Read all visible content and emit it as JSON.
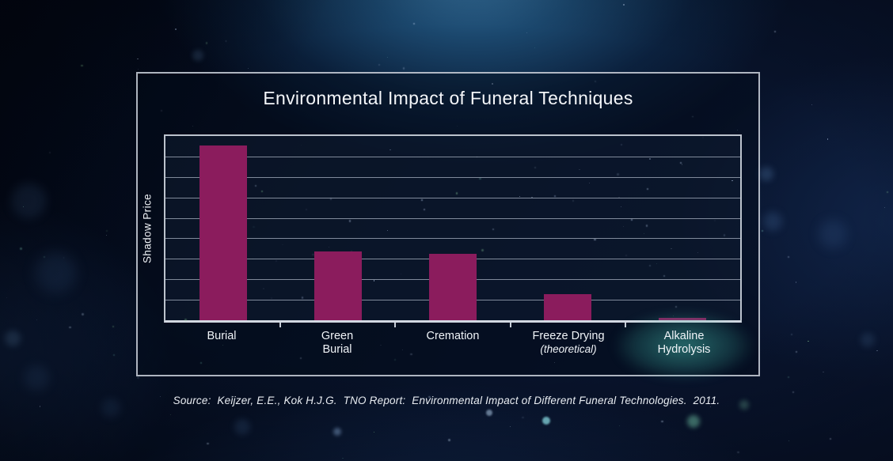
{
  "frame": {
    "title": "Environmental Impact of Funeral Techniques"
  },
  "axis": {
    "y_label": "Shadow Price"
  },
  "x_labels": [
    {
      "lines": [
        "Burial"
      ],
      "italic_second_line": false,
      "highlight": false
    },
    {
      "lines": [
        "Green",
        "Burial"
      ],
      "italic_second_line": false,
      "highlight": false
    },
    {
      "lines": [
        "Cremation"
      ],
      "italic_second_line": false,
      "highlight": false
    },
    {
      "lines": [
        "Freeze Drying",
        "(theoretical)"
      ],
      "italic_second_line": true,
      "highlight": false
    },
    {
      "lines": [
        "Alkaline",
        "Hydrolysis"
      ],
      "italic_second_line": false,
      "highlight": true
    }
  ],
  "caption": {
    "source": "Source:  Keijzer, E.E., Kok H.J.G.  TNO Report:  Environmental Impact of Different Funeral Technologies.  2011."
  },
  "colors": {
    "bar_fill": "#8b1c5d",
    "title_text": "#f4f6f9",
    "label_text": "#f0f4f8",
    "frame_border": "#c6ccd6",
    "grid_line": "#aab4c2",
    "highlight_glow": "#40b2a4",
    "background_top_glow": "#2a6590",
    "background_base": "#071229"
  },
  "chart_data": {
    "type": "bar",
    "title": "Environmental Impact of Funeral Techniques",
    "xlabel": "",
    "ylabel": "Shadow Price",
    "categories": [
      "Burial",
      "Green Burial",
      "Cremation",
      "Freeze Drying (theoretical)",
      "Alkaline Hydrolysis"
    ],
    "values": [
      95,
      37.5,
      36,
      14,
      1.3
    ],
    "ylim": [
      0,
      100
    ],
    "y_tick_labels": "none (unlabeled relative scale)",
    "gridline_rows": 9,
    "grid": true,
    "legend": false,
    "bar_color": "#8b1c5d",
    "highlighted_category": "Alkaline Hydrolysis",
    "caption": "Source:  Keijzer, E.E., Kok H.J.G.  TNO Report:  Environmental Impact of Different Funeral Technologies.  2011."
  }
}
